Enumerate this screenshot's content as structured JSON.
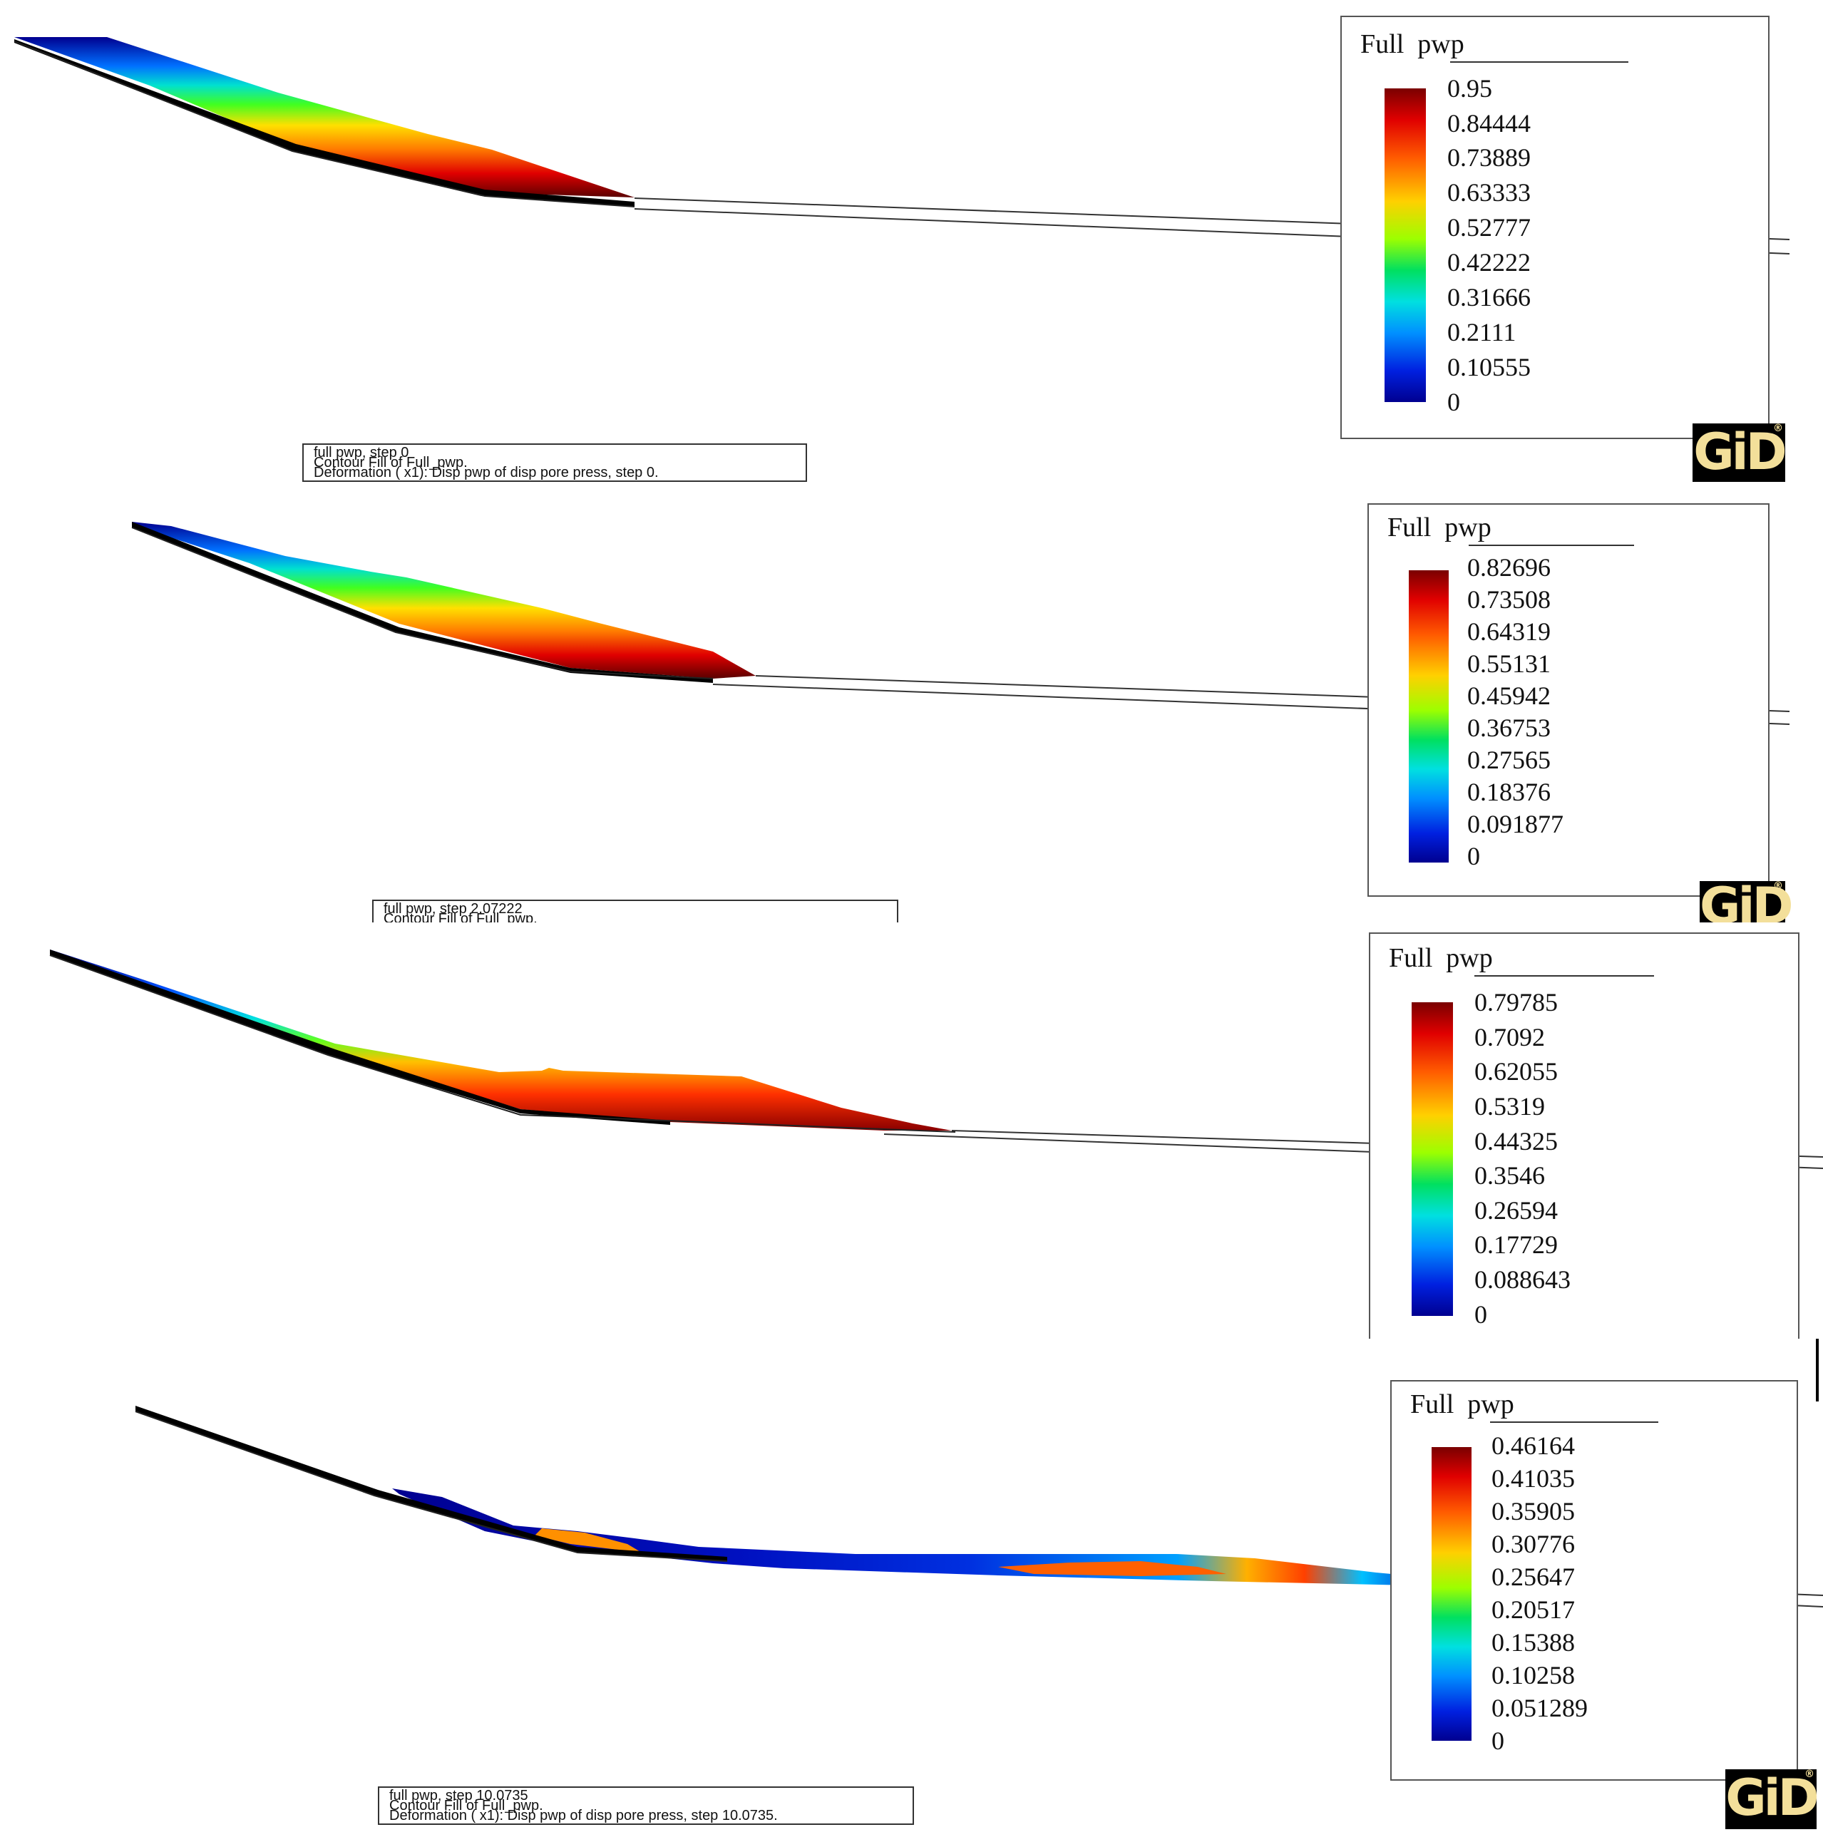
{
  "panels": [
    {
      "legend": {
        "title_a": "Full",
        "title_b": "pwp",
        "ticks": [
          "0.95",
          "0.84444",
          "0.73889",
          "0.63333",
          "0.52777",
          "0.42222",
          "0.31666",
          "0.2111",
          "0.10555",
          "0"
        ]
      },
      "caption": {
        "line1": "full pwp, step 0",
        "line2": "Contour Fill of Full_pwp.",
        "line3": "Deformation ( x1): Disp pwp of disp pore press, step 0."
      },
      "logo": "GiD"
    },
    {
      "legend": {
        "title_a": "Full",
        "title_b": "pwp",
        "ticks": [
          "0.82696",
          "0.73508",
          "0.64319",
          "0.55131",
          "0.45942",
          "0.36753",
          "0.27565",
          "0.18376",
          "0.091877",
          "0"
        ]
      },
      "caption": {
        "line1": "full pwp, step 2.07222",
        "line2": "Contour Fill of Full_pwp.",
        "line3": ""
      },
      "logo": "GiD"
    },
    {
      "legend": {
        "title_a": "Full",
        "title_b": "pwp",
        "ticks": [
          "0.79785",
          "0.7092",
          "0.62055",
          "0.5319",
          "0.44325",
          "0.3546",
          "0.26594",
          "0.17729",
          "0.088643",
          "0"
        ]
      },
      "caption": {
        "line1": "",
        "line2": "",
        "line3": ""
      },
      "logo": ""
    },
    {
      "legend": {
        "title_a": "Full",
        "title_b": "pwp",
        "ticks": [
          "0.46164",
          "0.41035",
          "0.35905",
          "0.30776",
          "0.25647",
          "0.20517",
          "0.15388",
          "0.10258",
          "0.051289",
          "0"
        ]
      },
      "caption": {
        "line1": "full pwp, step 10.0735",
        "line2": "Contour Fill of Full_pwp.",
        "line3": "Deformation ( x1): Disp pwp of disp pore press, step 10.0735."
      },
      "logo": "GiD"
    }
  ],
  "colors": {
    "max": "#7a0000",
    "high": "#ff3000",
    "mid_high": "#ffd000",
    "mid": "#00e050",
    "mid_low": "#00d8ff",
    "low": "#0030e0",
    "min": "#000080"
  }
}
